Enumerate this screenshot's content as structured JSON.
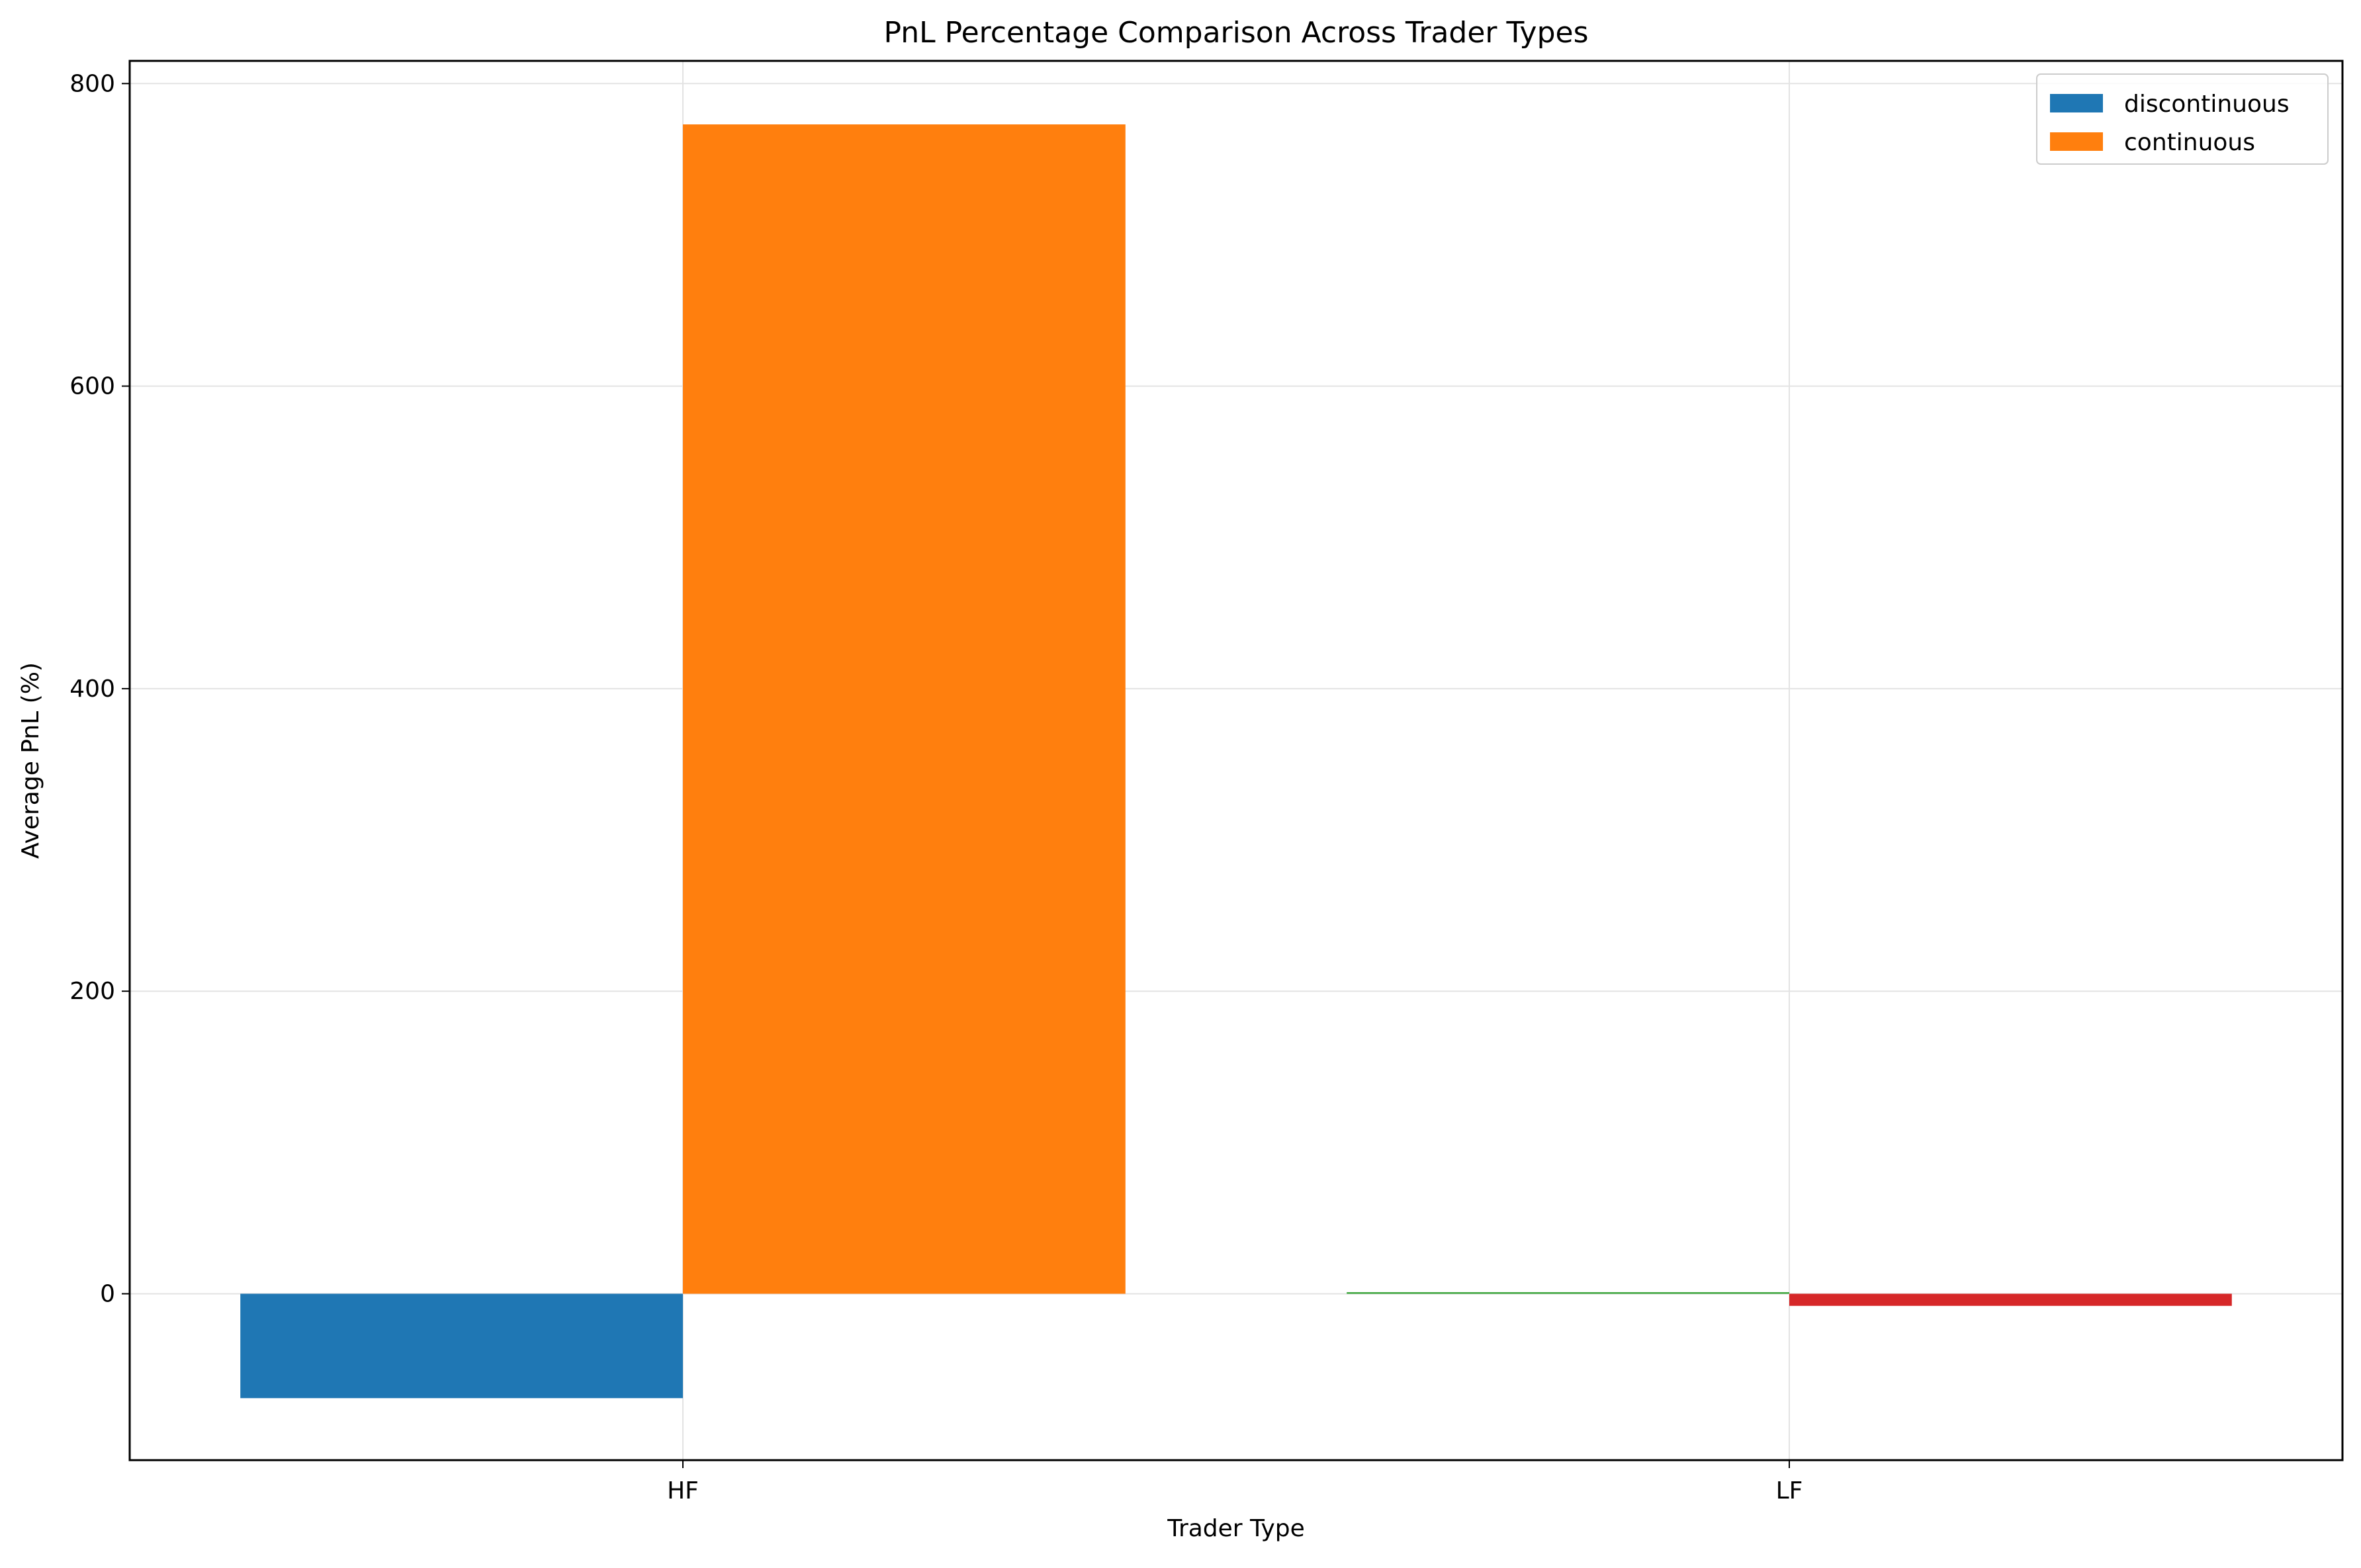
{
  "chart_data": {
    "type": "bar",
    "title": "PnL Percentage Comparison Across Trader Types",
    "xlabel": "Trader Type",
    "ylabel": "Average PnL (%)",
    "categories": [
      "HF",
      "LF"
    ],
    "ylim": [
      -110,
      815
    ],
    "yticks": [
      0,
      200,
      400,
      600,
      800
    ],
    "grid": true,
    "legend_position": "top-right",
    "legend": [
      {
        "label": "discontinuous",
        "color": "#1f77b4"
      },
      {
        "label": "continuous",
        "color": "#ff7f0e"
      }
    ],
    "bars": [
      {
        "category": "HF",
        "series": "discontinuous",
        "value": -69,
        "color": "#1f77b4"
      },
      {
        "category": "HF",
        "series": "continuous",
        "value": 773,
        "color": "#ff7f0e"
      },
      {
        "category": "LF",
        "series": "discontinuous",
        "value": 1,
        "color": "#2ca02c"
      },
      {
        "category": "LF",
        "series": "continuous",
        "value": -8,
        "color": "#d62728"
      }
    ]
  }
}
